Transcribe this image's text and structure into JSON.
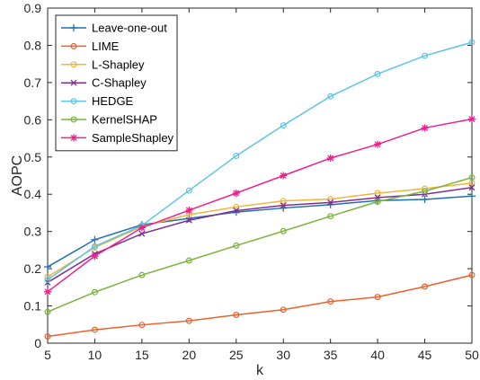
{
  "chart_data": {
    "type": "line",
    "title": "",
    "xlabel": "k",
    "ylabel": "AOPC",
    "xlim": [
      5,
      50
    ],
    "ylim": [
      0,
      0.9
    ],
    "x": [
      5,
      10,
      15,
      20,
      25,
      30,
      35,
      40,
      45,
      50
    ],
    "x_ticks": [
      "5",
      "10",
      "15",
      "20",
      "25",
      "30",
      "35",
      "40",
      "45",
      "50"
    ],
    "y_ticks": [
      "0",
      "0.1",
      "0.2",
      "0.3",
      "0.4",
      "0.5",
      "0.6",
      "0.7",
      "0.8",
      "0.9"
    ],
    "grid": false,
    "legend_position": "top-left",
    "series": [
      {
        "name": "Leave-one-out",
        "color": "#1f6fb2",
        "marker": "plus",
        "values": [
          0.205,
          0.278,
          0.318,
          0.335,
          0.352,
          0.363,
          0.372,
          0.383,
          0.386,
          0.395
        ]
      },
      {
        "name": "LIME",
        "color": "#e8622c",
        "marker": "circle",
        "values": [
          0.018,
          0.036,
          0.049,
          0.06,
          0.076,
          0.09,
          0.112,
          0.124,
          0.152,
          0.183
        ]
      },
      {
        "name": "L-Shapley",
        "color": "#f2b43c",
        "marker": "circle",
        "values": [
          0.178,
          0.257,
          0.313,
          0.345,
          0.366,
          0.382,
          0.387,
          0.403,
          0.415,
          0.43
        ]
      },
      {
        "name": "C-Shapley",
        "color": "#7d2f93",
        "marker": "cross",
        "values": [
          0.163,
          0.24,
          0.294,
          0.33,
          0.356,
          0.37,
          0.378,
          0.391,
          0.4,
          0.418
        ]
      },
      {
        "name": "HEDGE",
        "color": "#5cc4e8",
        "marker": "circle",
        "values": [
          0.17,
          0.26,
          0.316,
          0.41,
          0.503,
          0.585,
          0.663,
          0.723,
          0.772,
          0.808
        ]
      },
      {
        "name": "KernelSHAP",
        "color": "#78b43c",
        "marker": "circle",
        "values": [
          0.084,
          0.137,
          0.183,
          0.222,
          0.262,
          0.301,
          0.341,
          0.38,
          0.408,
          0.445
        ]
      },
      {
        "name": "SampleShapley",
        "color": "#ef1f8f",
        "marker": "star",
        "values": [
          0.138,
          0.234,
          0.31,
          0.357,
          0.403,
          0.45,
          0.497,
          0.534,
          0.578,
          0.602
        ]
      }
    ]
  }
}
